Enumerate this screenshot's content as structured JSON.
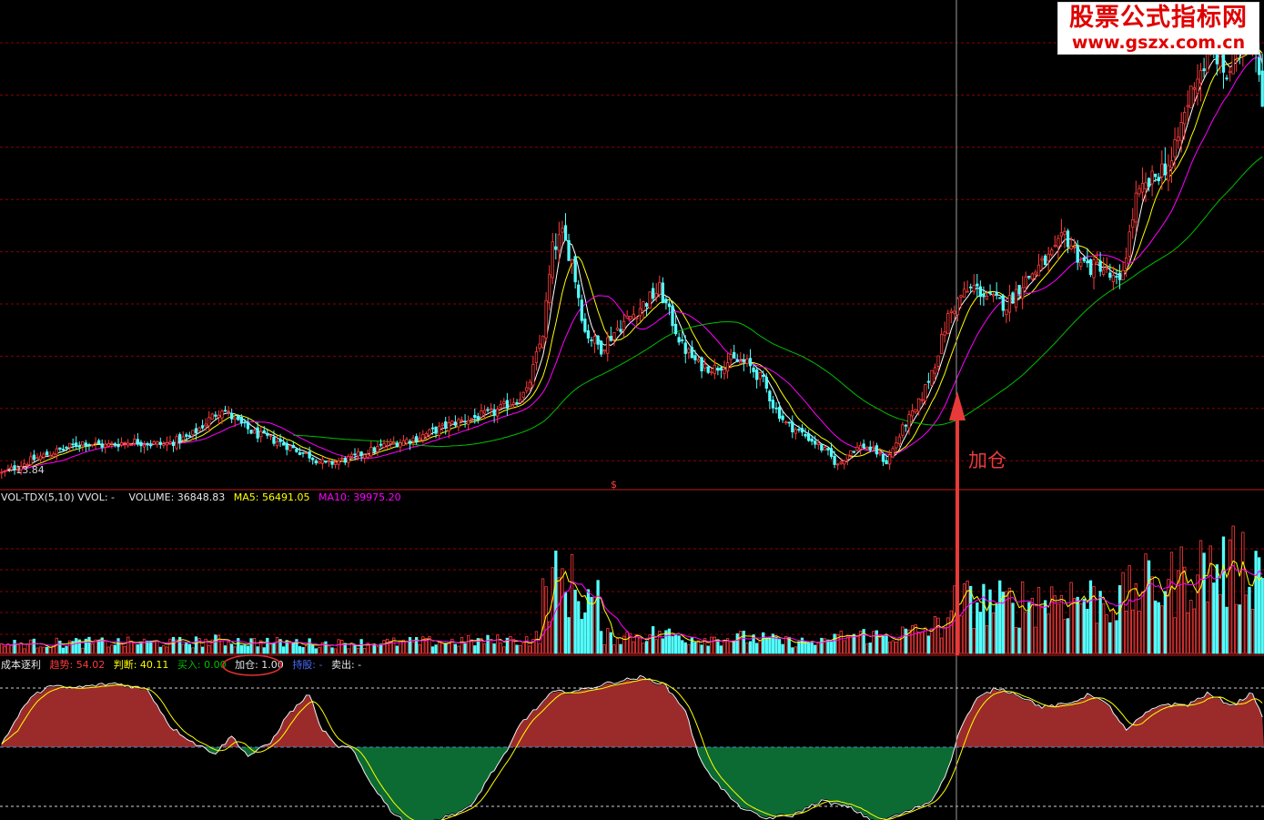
{
  "watermark": {
    "line1": "股票公式指标网",
    "line2": "www.gszx.com.cn"
  },
  "price_panel": {
    "low_label": "13.84",
    "marker": "$"
  },
  "volume_panel": {
    "header": "VOL-TDX(5,10)  VVOL: -",
    "volume_label": "VOLUME: 36848.83",
    "ma5_label": "MA5: 56491.05",
    "ma10_label": "MA10: 39975.20"
  },
  "indicator_panel": {
    "name": "成本逐利",
    "trend_key": "趋势",
    "trend_value": ": 54.02",
    "judge": "判断: 40.11",
    "buy": "买入: 0.00",
    "add": "加仓: 1.00",
    "hold": "持股: -",
    "sell": "卖出: -"
  },
  "annotation": {
    "text": "加仓"
  },
  "colors": {
    "up": "#ff3b3b",
    "down": "#54ffff",
    "ma5": "#ffffff",
    "ma10": "#ffff00",
    "ma20": "#ff00ff",
    "ma60": "#00c000",
    "grid": "#8b0000",
    "fill_pos": "#9b2b2b",
    "fill_neg": "#0c6b32",
    "arrow": "#e83a3a"
  },
  "chart_data": [
    {
      "type": "candlestick",
      "title": "",
      "series": [
        {
          "kind": "candles",
          "values": []
        },
        {
          "name": "",
          "kind": "ma5"
        },
        {
          "name": "",
          "kind": "ma10"
        },
        {
          "name": "",
          "kind": "ma20"
        },
        {
          "name": "",
          "kind": "ma60"
        }
      ],
      "ylim": [
        13.0,
        57.0
      ],
      "key_points": {
        "low_labeled": 13.84
      },
      "price_path": [
        [
          0,
          14.3
        ],
        [
          10,
          15.6
        ],
        [
          25,
          17.1
        ],
        [
          32,
          16.8
        ],
        [
          40,
          17.2
        ],
        [
          50,
          16.9
        ],
        [
          58,
          17.6
        ],
        [
          63,
          18.9
        ],
        [
          68,
          20.2
        ],
        [
          72,
          19.1
        ],
        [
          78,
          17.9
        ],
        [
          85,
          17.2
        ],
        [
          95,
          15.9
        ],
        [
          100,
          15.1
        ],
        [
          108,
          15.7
        ],
        [
          118,
          16.8
        ],
        [
          128,
          17.5
        ],
        [
          140,
          18.9
        ],
        [
          152,
          19.8
        ],
        [
          162,
          21.6
        ],
        [
          167,
          27.0
        ],
        [
          170,
          34.5
        ],
        [
          173,
          35.8
        ],
        [
          176,
          33.5
        ],
        [
          180,
          27.1
        ],
        [
          185,
          25.6
        ],
        [
          190,
          27.4
        ],
        [
          195,
          28.7
        ],
        [
          200,
          30.1
        ],
        [
          203,
          30.9
        ],
        [
          207,
          28.0
        ],
        [
          210,
          25.8
        ],
        [
          215,
          24.1
        ],
        [
          220,
          23.8
        ],
        [
          225,
          24.5
        ],
        [
          230,
          24.2
        ],
        [
          235,
          22.6
        ],
        [
          238,
          20.5
        ],
        [
          242,
          18.8
        ],
        [
          246,
          18.1
        ],
        [
          250,
          17.3
        ],
        [
          255,
          16.1
        ],
        [
          258,
          15.0
        ],
        [
          262,
          16.4
        ],
        [
          266,
          16.8
        ],
        [
          270,
          16.2
        ],
        [
          273,
          15.3
        ],
        [
          276,
          17.1
        ],
        [
          279,
          18.9
        ],
        [
          282,
          19.9
        ],
        [
          285,
          22.0
        ],
        [
          288,
          24.3
        ],
        [
          292,
          28.4
        ],
        [
          296,
          30.3
        ],
        [
          300,
          31.1
        ],
        [
          305,
          30.1
        ],
        [
          310,
          29.5
        ],
        [
          315,
          31.5
        ],
        [
          320,
          32.9
        ],
        [
          325,
          34.2
        ],
        [
          328,
          35.8
        ],
        [
          330,
          34.9
        ],
        [
          333,
          33.5
        ],
        [
          336,
          32.8
        ],
        [
          339,
          33.1
        ],
        [
          342,
          32.0
        ],
        [
          345,
          31.3
        ],
        [
          348,
          35.8
        ],
        [
          350,
          39.1
        ],
        [
          354,
          40.4
        ],
        [
          358,
          41.8
        ],
        [
          361,
          42.3
        ],
        [
          364,
          45.7
        ],
        [
          368,
          49.8
        ],
        [
          372,
          51.6
        ],
        [
          375,
          52.0
        ],
        [
          378,
          50.1
        ],
        [
          381,
          52.3
        ],
        [
          384,
          54.6
        ],
        [
          387,
          53.0
        ],
        [
          389,
          48.4
        ]
      ],
      "n_bars": 390
    },
    {
      "type": "bar",
      "title": "VOL-TDX(5,10)",
      "series": [
        {
          "name": "VOLUME",
          "last": 36848.83
        },
        {
          "name": "MA5",
          "last": 56491.05
        },
        {
          "name": "MA10",
          "last": 39975.2
        }
      ]
    },
    {
      "type": "area",
      "title": "成本逐利",
      "series": [
        {
          "name": "趋势",
          "last": 54.02
        },
        {
          "name": "判断",
          "last": 40.11
        },
        {
          "name": "买入",
          "last": 0.0
        },
        {
          "name": "加仓",
          "last": 1.0
        }
      ],
      "trend_path": [
        [
          0,
          0.05
        ],
        [
          8,
          0.62
        ],
        [
          14,
          0.82
        ],
        [
          22,
          0.8
        ],
        [
          35,
          0.86
        ],
        [
          45,
          0.78
        ],
        [
          52,
          0.28
        ],
        [
          60,
          0.04
        ],
        [
          66,
          -0.08
        ],
        [
          71,
          0.15
        ],
        [
          76,
          -0.12
        ],
        [
          83,
          0.06
        ],
        [
          88,
          0.42
        ],
        [
          95,
          0.72
        ],
        [
          98,
          0.3
        ],
        [
          103,
          0.02
        ],
        [
          108,
          -0.02
        ],
        [
          113,
          -0.42
        ],
        [
          120,
          -0.85
        ],
        [
          126,
          -1.05
        ],
        [
          135,
          -0.98
        ],
        [
          145,
          -0.8
        ],
        [
          150,
          -0.42
        ],
        [
          156,
          -0.06
        ],
        [
          160,
          0.32
        ],
        [
          165,
          0.52
        ],
        [
          170,
          0.74
        ],
        [
          178,
          0.76
        ],
        [
          188,
          0.87
        ],
        [
          197,
          0.94
        ],
        [
          204,
          0.86
        ],
        [
          211,
          0.5
        ],
        [
          215,
          -0.12
        ],
        [
          220,
          -0.45
        ],
        [
          227,
          -0.78
        ],
        [
          235,
          -0.96
        ],
        [
          244,
          -0.92
        ],
        [
          253,
          -0.72
        ],
        [
          262,
          -0.82
        ],
        [
          270,
          -1.02
        ],
        [
          279,
          -0.88
        ],
        [
          287,
          -0.72
        ],
        [
          292,
          -0.3
        ],
        [
          296,
          0.28
        ],
        [
          301,
          0.65
        ],
        [
          307,
          0.8
        ],
        [
          313,
          0.72
        ],
        [
          321,
          0.54
        ],
        [
          329,
          0.58
        ],
        [
          336,
          0.72
        ],
        [
          342,
          0.54
        ],
        [
          347,
          0.22
        ],
        [
          352,
          0.42
        ],
        [
          358,
          0.58
        ],
        [
          366,
          0.57
        ],
        [
          372,
          0.72
        ],
        [
          380,
          0.56
        ],
        [
          386,
          0.74
        ],
        [
          389,
          0.38
        ]
      ]
    }
  ]
}
